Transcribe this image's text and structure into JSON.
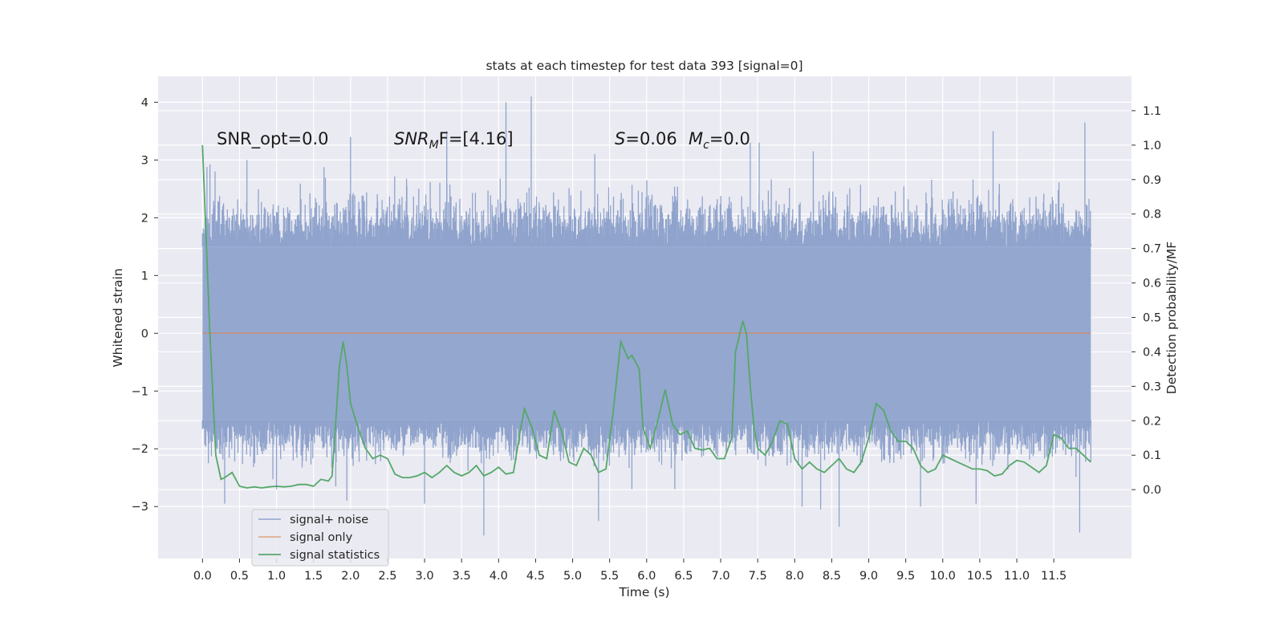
{
  "chart_data": {
    "type": "line",
    "title": "stats at each timestep for test data 393 [signal=0]",
    "xlabel": "Time (s)",
    "ylabel": "Whitened strain",
    "ylabel_right": "Detection probability/MF",
    "xlim": [
      -0.6,
      12.55
    ],
    "ylim": [
      -3.9,
      4.45
    ],
    "ylim_right": [
      -0.2,
      1.2
    ],
    "xticks": [
      0.0,
      0.5,
      1.0,
      1.5,
      2.0,
      2.5,
      3.0,
      3.5,
      4.0,
      4.5,
      5.0,
      5.5,
      6.0,
      6.5,
      7.0,
      7.5,
      8.0,
      8.5,
      9.0,
      9.5,
      10.0,
      10.5,
      11.0,
      11.5
    ],
    "xtick_labels": [
      "0.0",
      "0.5",
      "1.0",
      "1.5",
      "2.0",
      "2.5",
      "3.0",
      "3.5",
      "4.0",
      "4.5",
      "5.0",
      "5.5",
      "6.0",
      "6.5",
      "7.0",
      "7.5",
      "8.0",
      "8.5",
      "9.0",
      "9.5",
      "10.0",
      "10.5",
      "11.0",
      "11.5"
    ],
    "yticks": [
      -3,
      -2,
      -1,
      0,
      1,
      2,
      3,
      4
    ],
    "ytick_labels": [
      "−3",
      "−2",
      "−1",
      "0",
      "1",
      "2",
      "3",
      "4"
    ],
    "yticks_right": [
      0.0,
      0.1,
      0.2,
      0.3,
      0.4,
      0.5,
      0.6,
      0.7,
      0.8,
      0.9,
      1.0,
      1.1
    ],
    "ytick_labels_right": [
      "0.0",
      "0.1",
      "0.2",
      "0.3",
      "0.4",
      "0.5",
      "0.6",
      "0.7",
      "0.8",
      "0.9",
      "1.0",
      "1.1"
    ],
    "annotations": [
      "SNR_opt=0.0",
      "SNR",
      "M",
      "F=[4.16]",
      "S",
      "=0.06",
      "M",
      "c",
      "=0.0"
    ],
    "legend": {
      "location": "lower-left",
      "entries": [
        "signal+ noise",
        "signal only",
        "signal statistics"
      ]
    },
    "series": [
      {
        "name": "signal+ noise",
        "color": "#8fa3cc",
        "axis": "left",
        "x_range": [
          0.0,
          12.0
        ],
        "band_low": -1.5,
        "band_high": 1.5,
        "typical_peak_high": 2.6,
        "typical_peak_low": -2.3,
        "extreme_high": [
          [
            0.17,
            2.8
          ],
          [
            0.6,
            3.0
          ],
          [
            2.0,
            3.4
          ],
          [
            3.3,
            3.5
          ],
          [
            4.1,
            4.0
          ],
          [
            4.44,
            4.1
          ],
          [
            5.3,
            3.1
          ],
          [
            7.4,
            3.3
          ],
          [
            7.52,
            3.3
          ],
          [
            8.25,
            3.15
          ],
          [
            10.68,
            3.5
          ],
          [
            11.92,
            3.65
          ]
        ],
        "extreme_low": [
          [
            0.3,
            -2.95
          ],
          [
            1.0,
            -2.7
          ],
          [
            1.8,
            -2.65
          ],
          [
            1.95,
            -2.9
          ],
          [
            3.0,
            -2.95
          ],
          [
            3.8,
            -3.5
          ],
          [
            5.35,
            -3.25
          ],
          [
            5.8,
            -2.7
          ],
          [
            6.38,
            -2.7
          ],
          [
            8.1,
            -3.0
          ],
          [
            8.35,
            -3.05
          ],
          [
            8.6,
            -3.35
          ],
          [
            9.7,
            -3.0
          ],
          [
            10.45,
            -2.95
          ],
          [
            11.85,
            -3.45
          ]
        ]
      },
      {
        "name": "signal only",
        "color": "#dd8452",
        "axis": "left",
        "x": [
          0.0,
          12.0
        ],
        "y": [
          0.0,
          0.0
        ]
      },
      {
        "name": "signal statistics",
        "color": "#55a868",
        "axis": "right",
        "x": [
          0.0,
          0.1,
          0.18,
          0.25,
          0.3,
          0.4,
          0.5,
          0.6,
          0.7,
          0.8,
          0.9,
          1.0,
          1.1,
          1.2,
          1.3,
          1.4,
          1.5,
          1.55,
          1.6,
          1.7,
          1.75,
          1.85,
          1.9,
          1.95,
          2.0,
          2.1,
          2.2,
          2.3,
          2.4,
          2.5,
          2.6,
          2.7,
          2.8,
          2.9,
          3.0,
          3.1,
          3.2,
          3.3,
          3.4,
          3.5,
          3.6,
          3.7,
          3.8,
          3.9,
          4.0,
          4.1,
          4.2,
          4.3,
          4.35,
          4.45,
          4.55,
          4.65,
          4.75,
          4.85,
          4.95,
          5.05,
          5.15,
          5.25,
          5.35,
          5.45,
          5.55,
          5.65,
          5.75,
          5.8,
          5.85,
          5.9,
          5.95,
          6.05,
          6.15,
          6.25,
          6.35,
          6.45,
          6.55,
          6.65,
          6.75,
          6.85,
          6.95,
          7.05,
          7.15,
          7.2,
          7.3,
          7.35,
          7.4,
          7.45,
          7.5,
          7.6,
          7.7,
          7.8,
          7.9,
          8.0,
          8.1,
          8.2,
          8.3,
          8.4,
          8.5,
          8.6,
          8.7,
          8.8,
          8.9,
          9.0,
          9.1,
          9.2,
          9.3,
          9.4,
          9.5,
          9.6,
          9.7,
          9.8,
          9.9,
          10.0,
          10.1,
          10.2,
          10.3,
          10.4,
          10.5,
          10.6,
          10.7,
          10.8,
          10.9,
          11.0,
          11.1,
          11.2,
          11.3,
          11.4,
          11.5,
          11.6,
          11.7,
          11.8,
          11.9,
          12.0
        ],
        "y": [
          1.0,
          0.45,
          0.1,
          0.03,
          0.035,
          0.05,
          0.01,
          0.005,
          0.008,
          0.005,
          0.008,
          0.01,
          0.008,
          0.01,
          0.015,
          0.015,
          0.01,
          0.02,
          0.03,
          0.025,
          0.04,
          0.36,
          0.43,
          0.36,
          0.25,
          0.18,
          0.12,
          0.09,
          0.1,
          0.09,
          0.045,
          0.035,
          0.035,
          0.04,
          0.05,
          0.035,
          0.05,
          0.07,
          0.05,
          0.04,
          0.05,
          0.07,
          0.04,
          0.05,
          0.065,
          0.045,
          0.05,
          0.18,
          0.235,
          0.18,
          0.1,
          0.09,
          0.23,
          0.17,
          0.08,
          0.07,
          0.12,
          0.1,
          0.05,
          0.06,
          0.23,
          0.43,
          0.38,
          0.39,
          0.37,
          0.35,
          0.18,
          0.12,
          0.2,
          0.29,
          0.19,
          0.16,
          0.17,
          0.12,
          0.115,
          0.12,
          0.09,
          0.09,
          0.15,
          0.4,
          0.49,
          0.45,
          0.3,
          0.18,
          0.12,
          0.1,
          0.14,
          0.2,
          0.19,
          0.09,
          0.06,
          0.08,
          0.06,
          0.05,
          0.07,
          0.09,
          0.06,
          0.05,
          0.08,
          0.15,
          0.25,
          0.23,
          0.17,
          0.14,
          0.14,
          0.12,
          0.07,
          0.05,
          0.06,
          0.1,
          0.09,
          0.08,
          0.07,
          0.06,
          0.06,
          0.055,
          0.04,
          0.045,
          0.07,
          0.085,
          0.08,
          0.065,
          0.05,
          0.07,
          0.16,
          0.15,
          0.12,
          0.12,
          0.1,
          0.08
        ]
      }
    ]
  }
}
